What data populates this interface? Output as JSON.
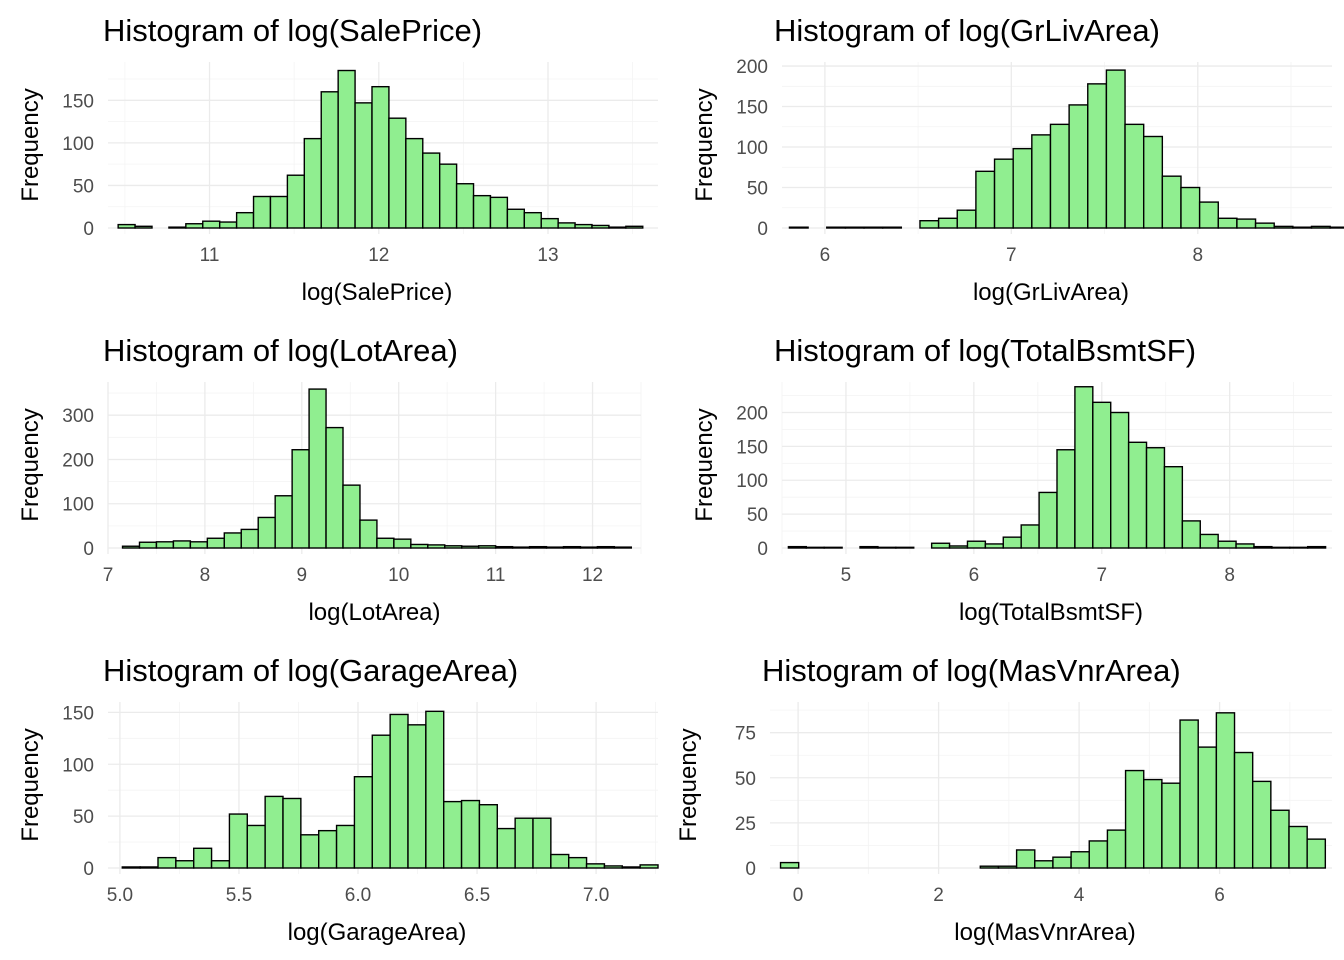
{
  "colors": {
    "bar_fill": "#90ee90",
    "bar_stroke": "#000000"
  },
  "chart_data": [
    {
      "type": "bar",
      "title": "Histogram of log(SalePrice)",
      "xlabel": "log(SalePrice)",
      "ylabel": "Frequency",
      "xlim": [
        10.4,
        13.65
      ],
      "ylim": [
        0,
        195
      ],
      "xticks": [
        11,
        12,
        13
      ],
      "yticks": [
        0,
        50,
        100,
        150
      ],
      "bin_start": 10.46,
      "bin_width": 0.1,
      "values": [
        4,
        2,
        0,
        1,
        5,
        8,
        7,
        18,
        37,
        37,
        62,
        105,
        160,
        185,
        147,
        166,
        129,
        105,
        88,
        75,
        52,
        38,
        36,
        22,
        18,
        11,
        6,
        4,
        3,
        1,
        2
      ]
    },
    {
      "type": "bar",
      "title": "Histogram of log(GrLivArea)",
      "xlabel": "log(GrLivArea)",
      "ylabel": "Frequency",
      "xlim": [
        5.77,
        8.72
      ],
      "ylim": [
        0,
        205
      ],
      "xticks": [
        6,
        7,
        8
      ],
      "yticks": [
        0,
        50,
        100,
        150,
        200
      ],
      "bin_start": 5.81,
      "bin_width": 0.1,
      "values": [
        1,
        0,
        1,
        1,
        1,
        1,
        0,
        9,
        12,
        22,
        70,
        85,
        98,
        115,
        128,
        152,
        178,
        195,
        128,
        113,
        64,
        50,
        32,
        12,
        11,
        6,
        2,
        1,
        2,
        1
      ]
    },
    {
      "type": "bar",
      "title": "Histogram of log(LotArea)",
      "xlabel": "log(LotArea)",
      "ylabel": "Frequency",
      "xlim": [
        7.0,
        12.5
      ],
      "ylim": [
        0,
        375
      ],
      "xticks": [
        7,
        8,
        9,
        10,
        11,
        12
      ],
      "yticks": [
        0,
        100,
        200,
        300
      ],
      "bin_start": 7.15,
      "bin_width": 0.175,
      "values": [
        4,
        13,
        14,
        16,
        14,
        22,
        34,
        42,
        69,
        118,
        222,
        359,
        272,
        142,
        63,
        22,
        20,
        8,
        7,
        5,
        4,
        5,
        3,
        2,
        3,
        2,
        3,
        2,
        3,
        2
      ]
    },
    {
      "type": "bar",
      "title": "Histogram of log(TotalBsmtSF)",
      "xlabel": "log(TotalBsmtSF)",
      "ylabel": "Frequency",
      "xlim": [
        4.5,
        8.8
      ],
      "ylim": [
        0,
        245
      ],
      "xticks": [
        5,
        6,
        7,
        8
      ],
      "yticks": [
        0,
        50,
        100,
        150,
        200
      ],
      "bin_start": 4.55,
      "bin_width": 0.14,
      "values": [
        2,
        1,
        1,
        0,
        2,
        1,
        1,
        0,
        7,
        3,
        10,
        6,
        16,
        34,
        82,
        145,
        238,
        215,
        200,
        156,
        148,
        120,
        40,
        20,
        10,
        6,
        2,
        1,
        1,
        2
      ]
    },
    {
      "type": "bar",
      "title": "Histogram of log(GarageArea)",
      "xlabel": "log(GarageArea)",
      "ylabel": "Frequency",
      "xlim": [
        4.95,
        7.26
      ],
      "ylim": [
        0,
        160
      ],
      "xticks": [
        "5.0",
        "5.5",
        "6.0",
        "6.5",
        "7.0"
      ],
      "yticks": [
        0,
        50,
        100,
        150
      ],
      "bin_start": 5.01,
      "bin_width": 0.075,
      "values": [
        1,
        1,
        10,
        7,
        19,
        7,
        52,
        41,
        69,
        67,
        32,
        36,
        41,
        88,
        128,
        148,
        138,
        151,
        64,
        65,
        61,
        38,
        48,
        48,
        13,
        10,
        4,
        2,
        1,
        3
      ]
    },
    {
      "type": "bar",
      "title": "Histogram of log(MasVnrArea)",
      "xlabel": "log(MasVnrArea)",
      "ylabel": "Frequency",
      "xlim": [
        -0.4,
        7.6
      ],
      "ylim": [
        0,
        92
      ],
      "xticks": [
        0,
        2,
        4,
        6
      ],
      "yticks": [
        0,
        25,
        50,
        75
      ],
      "bin_start": -0.25,
      "bin_width": 0.2585,
      "values": [
        3,
        0,
        0,
        0,
        0,
        0,
        0,
        0,
        0,
        0,
        0,
        1,
        1,
        10,
        4,
        6,
        9,
        15,
        21,
        54,
        49,
        47,
        82,
        67,
        86,
        64,
        48,
        32,
        23,
        16
      ]
    }
  ]
}
